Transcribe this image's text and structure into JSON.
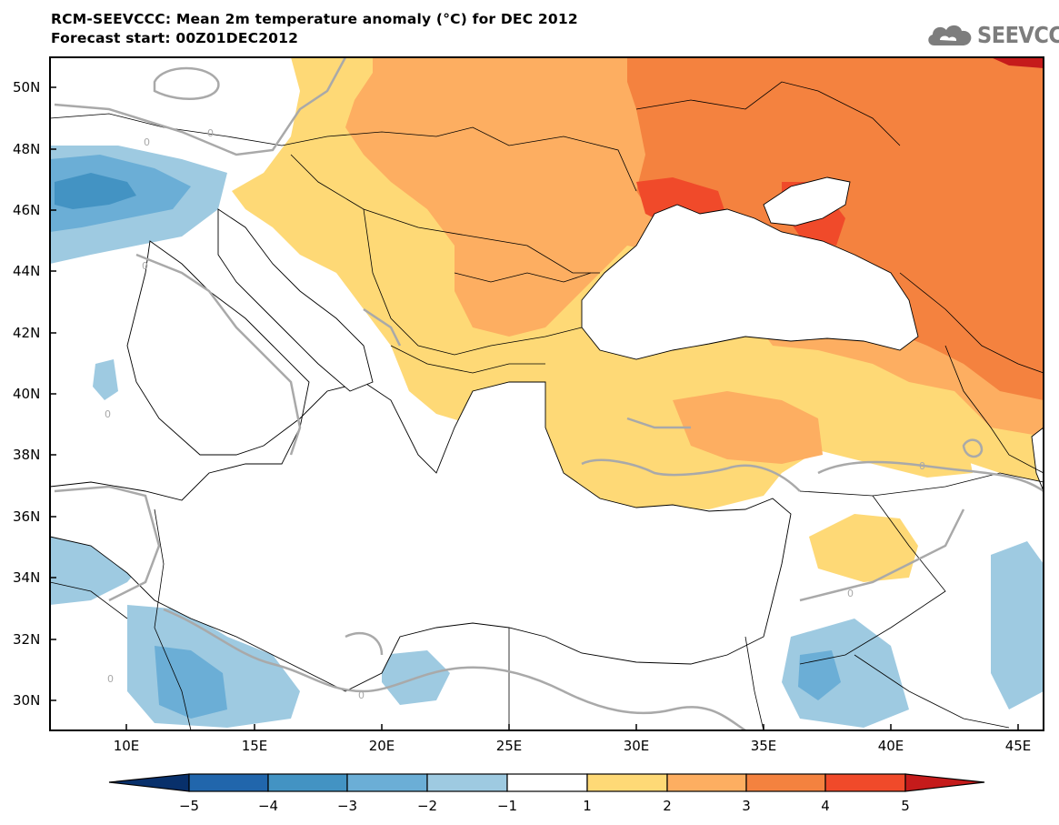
{
  "header": {
    "title": "RCM-SEEVCCC: Mean 2m temperature anomaly (°C) for DEC 2012",
    "subtitle": "Forecast start: 00Z01DEC2012"
  },
  "logo": {
    "text": "SEEVCCC",
    "icon": "cloud-icon",
    "color": "#7d7d7d"
  },
  "map": {
    "variable": "Mean 2m temperature anomaly (°C)",
    "lon_labels": [
      "10E",
      "15E",
      "20E",
      "25E",
      "30E",
      "35E",
      "40E",
      "45E"
    ],
    "lat_labels": [
      "50N",
      "48N",
      "46N",
      "44N",
      "42N",
      "40N",
      "38N",
      "36N",
      "34N",
      "32N",
      "30N"
    ],
    "lon_range": [
      7,
      46
    ],
    "lat_range": [
      29,
      51
    ],
    "contour_label": "0"
  },
  "colorbar": {
    "ticks": [
      "−5",
      "−4",
      "−3",
      "−2",
      "−1",
      "1",
      "2",
      "3",
      "4",
      "5"
    ],
    "colors": [
      "#08306b",
      "#2166ac",
      "#4393c3",
      "#6baed6",
      "#9ecae1",
      "#ffffff",
      "#fed976",
      "#fdae61",
      "#f4823f",
      "#f04a2a",
      "#c51b1b"
    ]
  },
  "colors": {
    "land_outline": "#000000",
    "zero_contour": "#a9a9a9",
    "sea": "#ffffff"
  }
}
